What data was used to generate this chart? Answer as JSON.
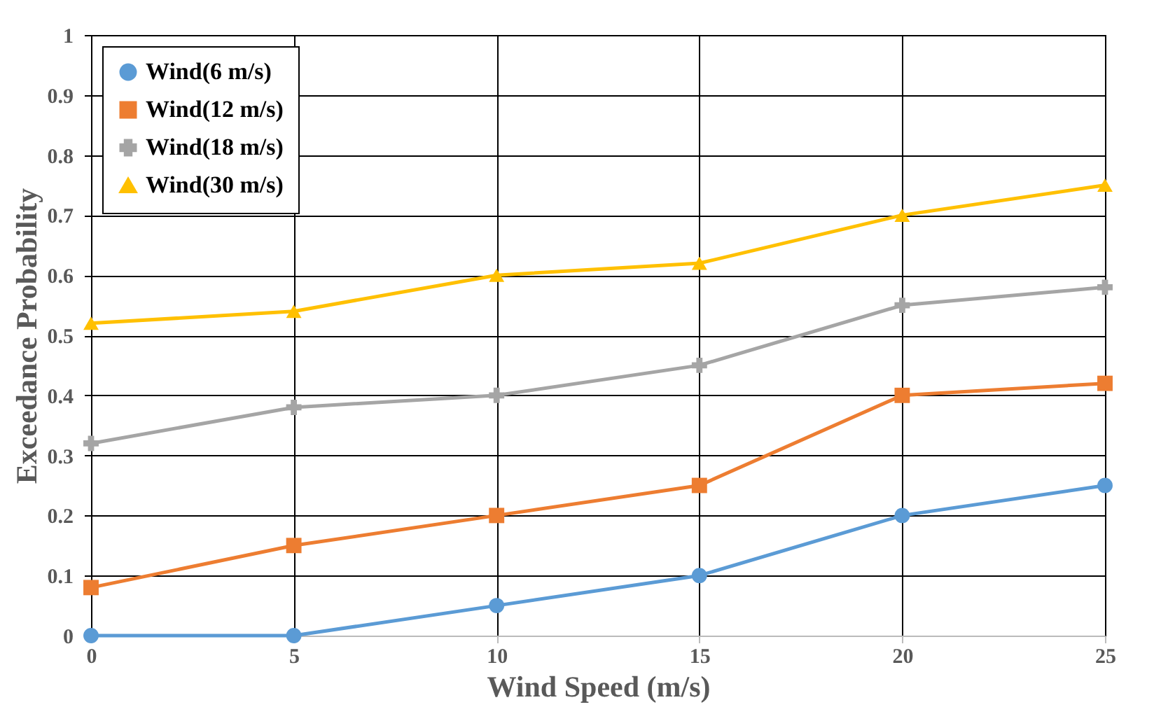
{
  "chart_data": {
    "type": "line",
    "xlabel": "Wind Speed (m/s)",
    "ylabel": "Exceedance Probability",
    "x": [
      0,
      5,
      10,
      15,
      20,
      25
    ],
    "series": [
      {
        "name": "Wind(6 m/s)",
        "color": "#5b9bd5",
        "marker": "circle",
        "values": [
          0,
          0,
          0.05,
          0.1,
          0.2,
          0.25
        ]
      },
      {
        "name": "Wind(12 m/s)",
        "color": "#ed7d31",
        "marker": "square",
        "values": [
          0.08,
          0.15,
          0.2,
          0.25,
          0.4,
          0.42
        ]
      },
      {
        "name": "Wind(18 m/s)",
        "color": "#a5a5a5",
        "marker": "cross",
        "values": [
          0.32,
          0.38,
          0.4,
          0.45,
          0.55,
          0.58
        ]
      },
      {
        "name": "Wind(30 m/s)",
        "color": "#ffc000",
        "marker": "triangle",
        "values": [
          0.52,
          0.54,
          0.6,
          0.62,
          0.7,
          0.75
        ]
      }
    ],
    "xlim": [
      0,
      25
    ],
    "xticks": [
      0,
      5,
      10,
      15,
      20,
      25
    ],
    "ylim": [
      0,
      1
    ],
    "yticks": [
      0,
      0.1,
      0.2,
      0.3,
      0.4,
      0.5,
      0.6,
      0.7,
      0.8,
      0.9,
      1
    ],
    "grid": true,
    "legend": "top left",
    "line_style": "solid"
  }
}
